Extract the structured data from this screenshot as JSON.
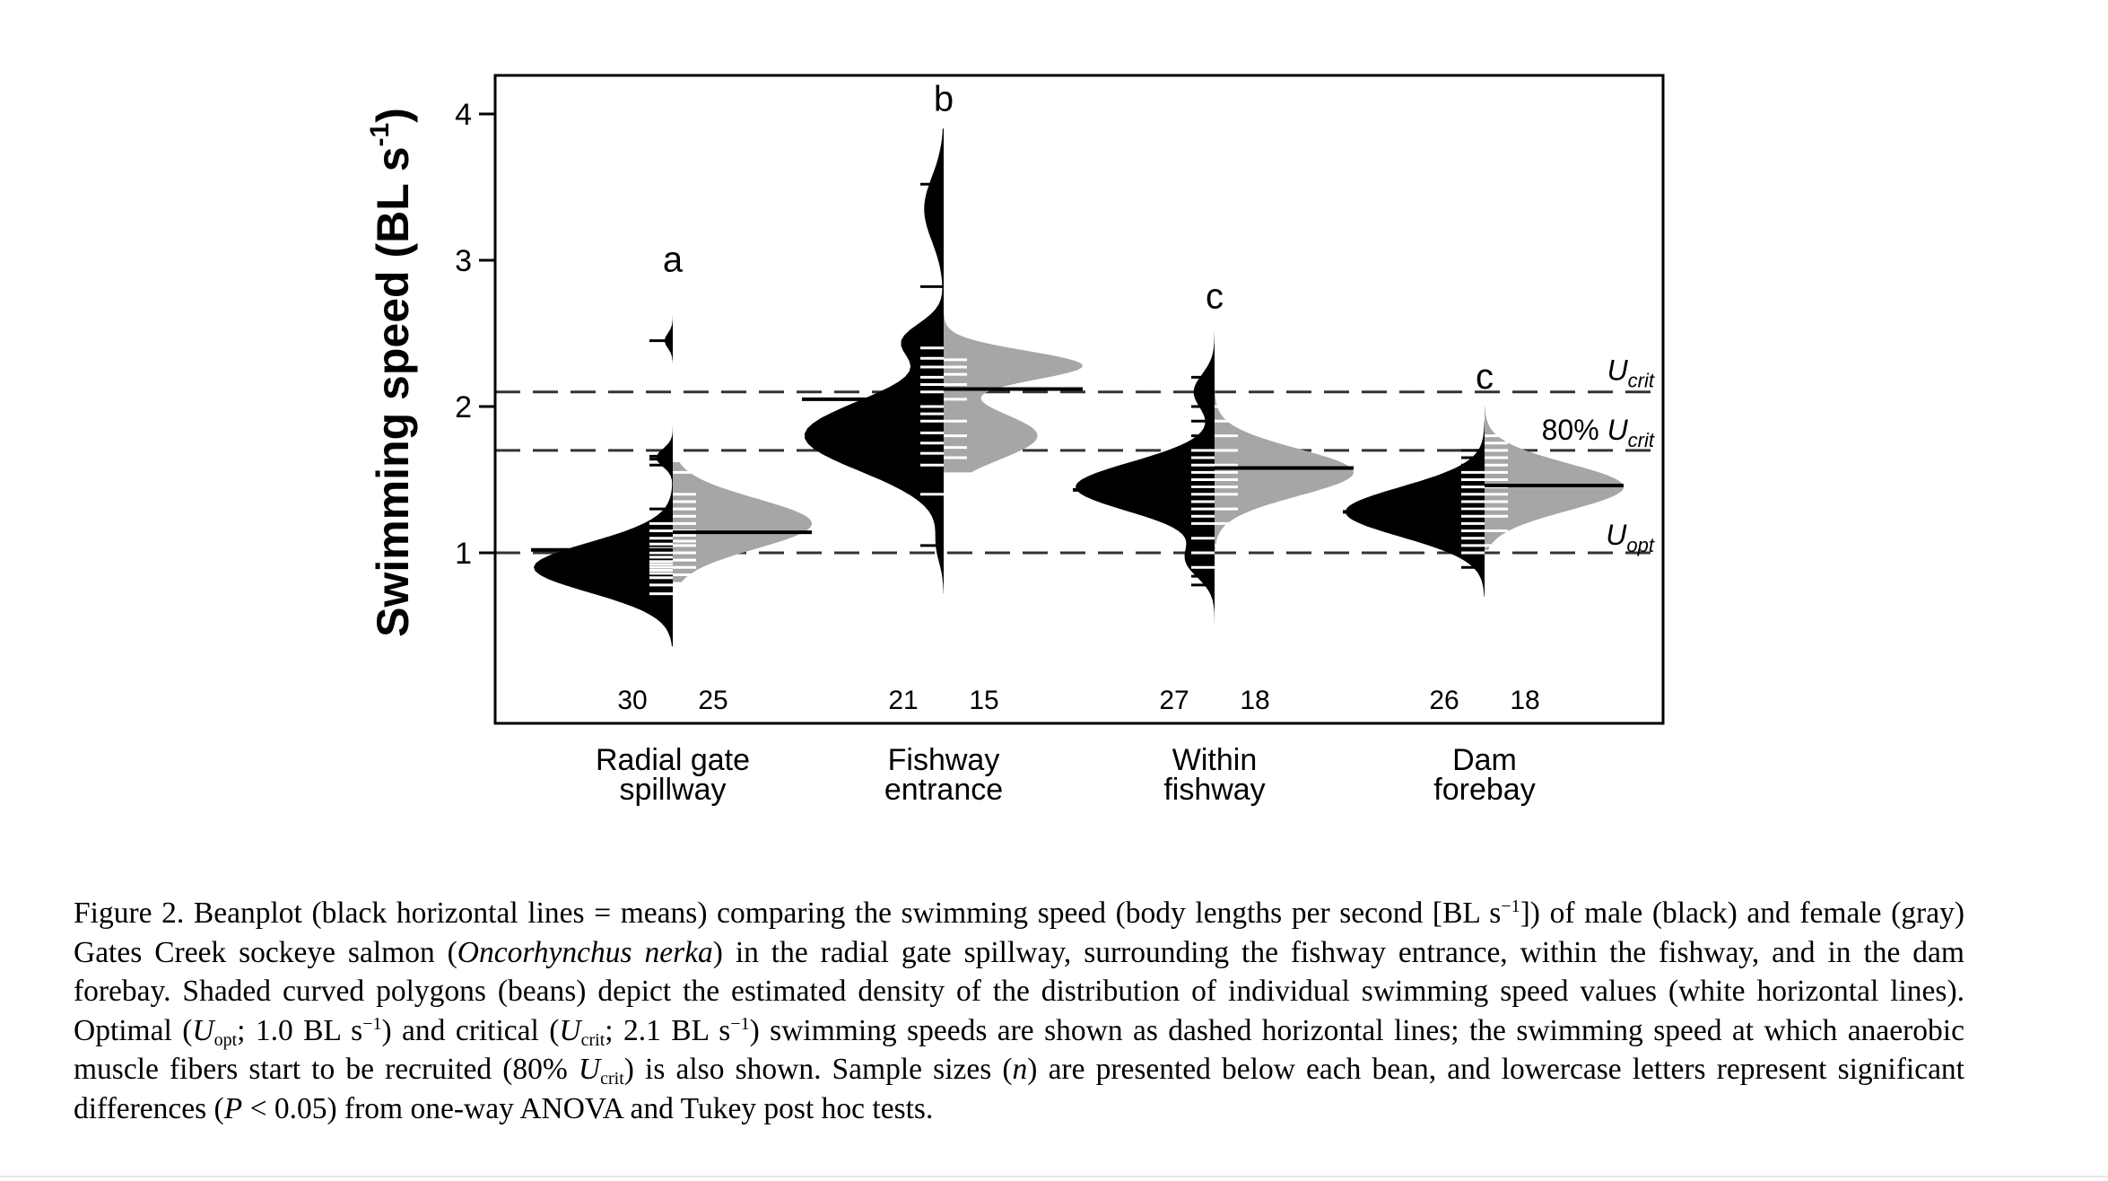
{
  "chart_data": {
    "type": "beanplot",
    "ylabel": "Swimming speed (BL s",
    "ylabel_sup": "-1",
    "ylabel_close": ")",
    "yticks": [
      1,
      2,
      3,
      4
    ],
    "ytick_labels": [
      "1",
      "2",
      "3",
      "4"
    ],
    "ylim": [
      0.0,
      4.3
    ],
    "reference_lines": [
      {
        "value": 2.1,
        "label_pre": "",
        "label_main": "U",
        "label_sub": "crit"
      },
      {
        "value": 1.7,
        "label_pre": "80% ",
        "label_main": "U",
        "label_sub": "crit"
      },
      {
        "value": 1.0,
        "label_pre": "",
        "label_main": "U",
        "label_sub": "opt"
      }
    ],
    "colors": {
      "male": "#000000",
      "female": "#a6a6a6",
      "tick": "#ffffff",
      "dash": "#333333"
    },
    "groups": [
      {
        "name_line1": "Radial gate",
        "name_line2": "spillway",
        "letter": "a",
        "n_male": "30",
        "n_female": "25",
        "male_mean": 1.02,
        "female_mean": 1.14,
        "male_range": [
          0.36,
          2.8
        ],
        "female_range": [
          0.8,
          1.62
        ],
        "male_modes": [
          [
            0.9,
            0.17,
            1.0
          ],
          [
            1.65,
            0.06,
            0.12
          ],
          [
            2.45,
            0.05,
            0.06
          ]
        ],
        "female_modes": [
          [
            1.2,
            0.17,
            1.0
          ]
        ],
        "male_values": [
          0.72,
          0.78,
          0.83,
          0.86,
          0.88,
          0.9,
          0.92,
          0.94,
          0.97,
          1.0,
          1.03,
          1.06,
          1.1,
          1.15,
          1.2,
          1.3,
          1.6,
          1.64,
          1.66,
          2.45
        ],
        "female_values": [
          0.85,
          0.9,
          0.95,
          1.0,
          1.05,
          1.08,
          1.12,
          1.15,
          1.2,
          1.25,
          1.3,
          1.35,
          1.4,
          1.55
        ]
      },
      {
        "name_line1": "Fishway",
        "name_line2": "entrance",
        "letter": "b",
        "n_male": "21",
        "n_female": "15",
        "male_mean": 2.05,
        "female_mean": 2.12,
        "male_range": [
          0.72,
          3.9
        ],
        "female_range": [
          1.55,
          2.95
        ],
        "male_modes": [
          [
            1.8,
            0.24,
            1.0
          ],
          [
            2.45,
            0.12,
            0.28
          ],
          [
            3.35,
            0.22,
            0.14
          ],
          [
            1.05,
            0.12,
            0.05
          ]
        ],
        "female_modes": [
          [
            2.28,
            0.1,
            1.0
          ],
          [
            1.8,
            0.16,
            0.68
          ]
        ],
        "male_values": [
          1.05,
          1.4,
          1.6,
          1.68,
          1.75,
          1.82,
          1.9,
          1.95,
          2.0,
          2.05,
          2.1,
          2.15,
          2.2,
          2.27,
          2.33,
          2.4,
          2.82,
          3.52
        ],
        "female_values": [
          1.65,
          1.72,
          1.8,
          1.9,
          2.05,
          2.15,
          2.22,
          2.27,
          2.32,
          2.65
        ]
      },
      {
        "name_line1": "Within",
        "name_line2": "fishway",
        "letter": "c",
        "n_male": "27",
        "n_female": "18",
        "male_mean": 1.43,
        "female_mean": 1.58,
        "male_range": [
          0.45,
          2.55
        ],
        "female_range": [
          1.02,
          2.18
        ],
        "male_modes": [
          [
            1.45,
            0.17,
            1.0
          ],
          [
            0.95,
            0.12,
            0.2
          ],
          [
            2.1,
            0.12,
            0.15
          ]
        ],
        "female_modes": [
          [
            1.55,
            0.16,
            1.0
          ]
        ],
        "male_values": [
          0.78,
          0.84,
          0.9,
          1.0,
          1.1,
          1.2,
          1.25,
          1.3,
          1.35,
          1.4,
          1.45,
          1.5,
          1.55,
          1.6,
          1.65,
          1.7,
          1.8,
          1.9,
          2.0,
          2.2
        ],
        "female_values": [
          1.05,
          1.2,
          1.3,
          1.4,
          1.45,
          1.5,
          1.55,
          1.6,
          1.7,
          1.8,
          1.9,
          2.0
        ]
      },
      {
        "name_line1": "Dam",
        "name_line2": "forebay",
        "letter": "c",
        "n_male": "26",
        "n_female": "18",
        "male_mean": 1.28,
        "female_mean": 1.46,
        "male_range": [
          0.7,
          1.9
        ],
        "female_range": [
          1.02,
          2.0
        ],
        "male_modes": [
          [
            1.28,
            0.17,
            1.0
          ]
        ],
        "female_modes": [
          [
            1.45,
            0.16,
            1.0
          ]
        ],
        "male_values": [
          0.9,
          1.0,
          1.05,
          1.1,
          1.15,
          1.2,
          1.25,
          1.3,
          1.35,
          1.4,
          1.45,
          1.5,
          1.55,
          1.6,
          1.65,
          1.7
        ],
        "female_values": [
          1.05,
          1.15,
          1.25,
          1.3,
          1.35,
          1.4,
          1.45,
          1.5,
          1.55,
          1.6,
          1.65,
          1.7,
          1.75,
          1.8
        ]
      }
    ]
  },
  "caption": {
    "t1": "Figure 2.  Beanplot (black horizontal lines  =  means) comparing the swimming speed (body lengths per second [BL s",
    "t1_sup": "−1",
    "t2": "]) of male (black) and female (gray) Gates Creek sockeye salmon (",
    "t2_italic": "Oncorhynchus nerka",
    "t3": ") in the radial gate spillway, surrounding the fishway entrance, within the fishway, and in the dam forebay. Shaded curved polygons (beans) depict the estimated density of the distribution of individual swimming speed values (white horizontal lines). Optimal (",
    "u1": "U",
    "u1_sub": "opt",
    "t4": "; 1.0 BL s",
    "t4_sup": "−1",
    "t5": ") and critical (",
    "u2": "U",
    "u2_sub": "crit",
    "t6": "; 2.1 BL s",
    "t6_sup": "−1",
    "t7": ") swimming speeds are shown as dashed horizontal lines; the swimming speed at which anaerobic muscle fibers start to be recruited (80% ",
    "u3": "U",
    "u3_sub": "crit",
    "t8": ") is also shown. Sample sizes (",
    "n_italic": "n",
    "t9": ") are presented below each bean, and lowercase letters represent significant differences (",
    "p_italic": "P",
    "t10": " < 0.05) from one-way ANOVA and Tukey post hoc tests."
  }
}
